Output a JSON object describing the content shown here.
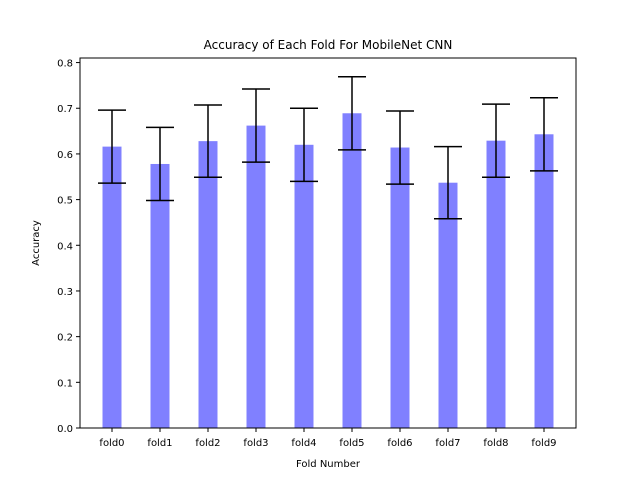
{
  "chart_data": {
    "type": "bar",
    "title": "Accuracy of Each Fold For MobileNet CNN",
    "xlabel": "Fold Number",
    "ylabel": "Accuracy",
    "categories": [
      "fold0",
      "fold1",
      "fold2",
      "fold3",
      "fold4",
      "fold5",
      "fold6",
      "fold7",
      "fold8",
      "fold9"
    ],
    "values": [
      0.616,
      0.578,
      0.628,
      0.662,
      0.62,
      0.689,
      0.614,
      0.537,
      0.629,
      0.643
    ],
    "error": [
      0.08,
      0.08,
      0.079,
      0.08,
      0.08,
      0.08,
      0.08,
      0.079,
      0.08,
      0.08
    ],
    "ylim": [
      0,
      0.81
    ],
    "yticks": [
      0.0,
      0.1,
      0.2,
      0.3,
      0.4,
      0.5,
      0.6,
      0.7,
      0.8
    ],
    "ytick_labels": [
      "0.0",
      "0.1",
      "0.2",
      "0.3",
      "0.4",
      "0.5",
      "0.6",
      "0.7",
      "0.8"
    ],
    "bar_color": "#8080ff",
    "error_color": "#000000",
    "grid": false,
    "legend": "none"
  }
}
